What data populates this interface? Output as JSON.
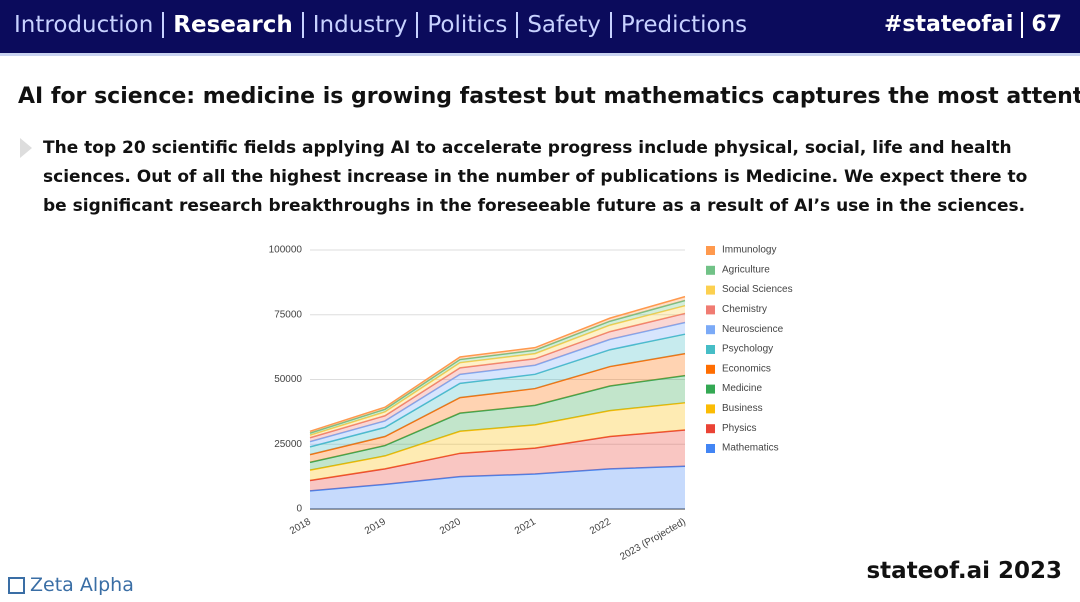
{
  "header": {
    "nav": [
      "Introduction",
      "Research",
      "Industry",
      "Politics",
      "Safety",
      "Predictions"
    ],
    "active": "Research",
    "tag": "#stateofai",
    "page": 67
  },
  "title": "AI for science: medicine is growing fastest but mathematics captures the most attention",
  "bullet": "The top 20 scientific fields applying AI to accelerate progress include physical, social, life and health sciences. Out of all the highest increase in the number of publications is Medicine. We expect there to be significant research breakthroughs in the foreseeable future as a result of AI’s use in the sciences.",
  "chart_data": {
    "type": "stacked_area",
    "categories": [
      "2018",
      "2019",
      "2020",
      "2021",
      "2022",
      "2023 (Projected)"
    ],
    "series": [
      {
        "name": "Mathematics",
        "color": "#4285f4",
        "values": [
          7000,
          9500,
          12500,
          13500,
          15500,
          16500
        ]
      },
      {
        "name": "Physics",
        "color": "#ea4335",
        "values": [
          4000,
          6000,
          9000,
          10000,
          12500,
          14000
        ]
      },
      {
        "name": "Business",
        "color": "#fbbc04",
        "values": [
          4000,
          5000,
          8500,
          9000,
          10000,
          10500
        ]
      },
      {
        "name": "Medicine",
        "color": "#34a853",
        "values": [
          3000,
          4000,
          7000,
          7500,
          9500,
          10500
        ]
      },
      {
        "name": "Economics",
        "color": "#ff6d01",
        "values": [
          3000,
          3500,
          6000,
          6500,
          7500,
          8500
        ]
      },
      {
        "name": "Psychology",
        "color": "#46bdc6",
        "values": [
          3000,
          3500,
          5500,
          5500,
          6500,
          7500
        ]
      },
      {
        "name": "Neuroscience",
        "color": "#7baaf7",
        "values": [
          2000,
          2500,
          3500,
          3500,
          4000,
          4500
        ]
      },
      {
        "name": "Chemistry",
        "color": "#f07b72",
        "values": [
          1500,
          2000,
          2500,
          2500,
          3000,
          3500
        ]
      },
      {
        "name": "Social Sciences",
        "color": "#fcd04f",
        "values": [
          1000,
          1500,
          2000,
          2000,
          2500,
          3000
        ]
      },
      {
        "name": "Agriculture",
        "color": "#71c287",
        "values": [
          800,
          1000,
          1200,
          1300,
          1500,
          2000
        ]
      },
      {
        "name": "Immunology",
        "color": "#ff994d",
        "values": [
          700,
          800,
          1000,
          1000,
          1200,
          1500
        ]
      }
    ],
    "ylim": [
      0,
      100000
    ],
    "yticks": [
      0,
      25000,
      50000,
      75000,
      100000
    ],
    "grid": true,
    "legend": "right"
  },
  "footer": {
    "brand": "Zeta Alpha",
    "site": "stateof.ai 2023"
  }
}
